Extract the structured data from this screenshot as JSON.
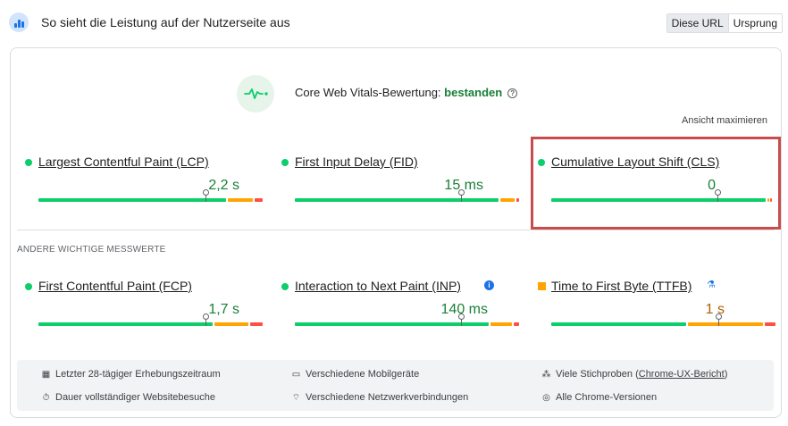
{
  "header": {
    "title": "So sieht die Leistung auf der Nutzerseite aus",
    "toggle": {
      "this_url": "Diese URL",
      "origin": "Ursprung"
    }
  },
  "assessment": {
    "label": "Core Web Vitals-Bewertung:",
    "status": "bestanden",
    "expand": "Ansicht maximieren"
  },
  "core_metrics": [
    {
      "name": "Largest Contentful Paint (LCP)",
      "value": "2,2 s",
      "status": "good",
      "marker": 0.75
    },
    {
      "name": "First Input Delay (FID)",
      "value": "15 ms",
      "status": "good",
      "marker": 0.75
    },
    {
      "name": "Cumulative Layout Shift (CLS)",
      "value": "0",
      "status": "good",
      "marker": 0.75
    }
  ],
  "other_label": "ANDERE WICHTIGE MESSWERTE",
  "other_metrics": [
    {
      "name": "First Contentful Paint (FCP)",
      "value": "1,7 s",
      "status": "good",
      "marker": 0.75
    },
    {
      "name": "Interaction to Next Paint (INP)",
      "value": "140 ms",
      "status": "good",
      "marker": 0.75
    },
    {
      "name": "Time to First Byte (TTFB)",
      "value": "1 s",
      "status": "needs-improvement",
      "marker": 0.75
    }
  ],
  "footer": {
    "period": "Letzter 28-tägiger Erhebungszeitraum",
    "duration": "Dauer vollständiger Websitebesuche",
    "devices": "Verschiedene Mobilgeräte",
    "network": "Verschiedene Netzwerkverbindungen",
    "samples_prefix": "Viele Stichproben (",
    "samples_link": "Chrome-UX-Bericht",
    "samples_suffix": ")",
    "versions": "Alle Chrome-Versionen"
  },
  "colors": {
    "good": "#0cce6b",
    "needs_improvement": "#ffa400",
    "poor": "#ff4e42",
    "pass_text": "#188038"
  }
}
